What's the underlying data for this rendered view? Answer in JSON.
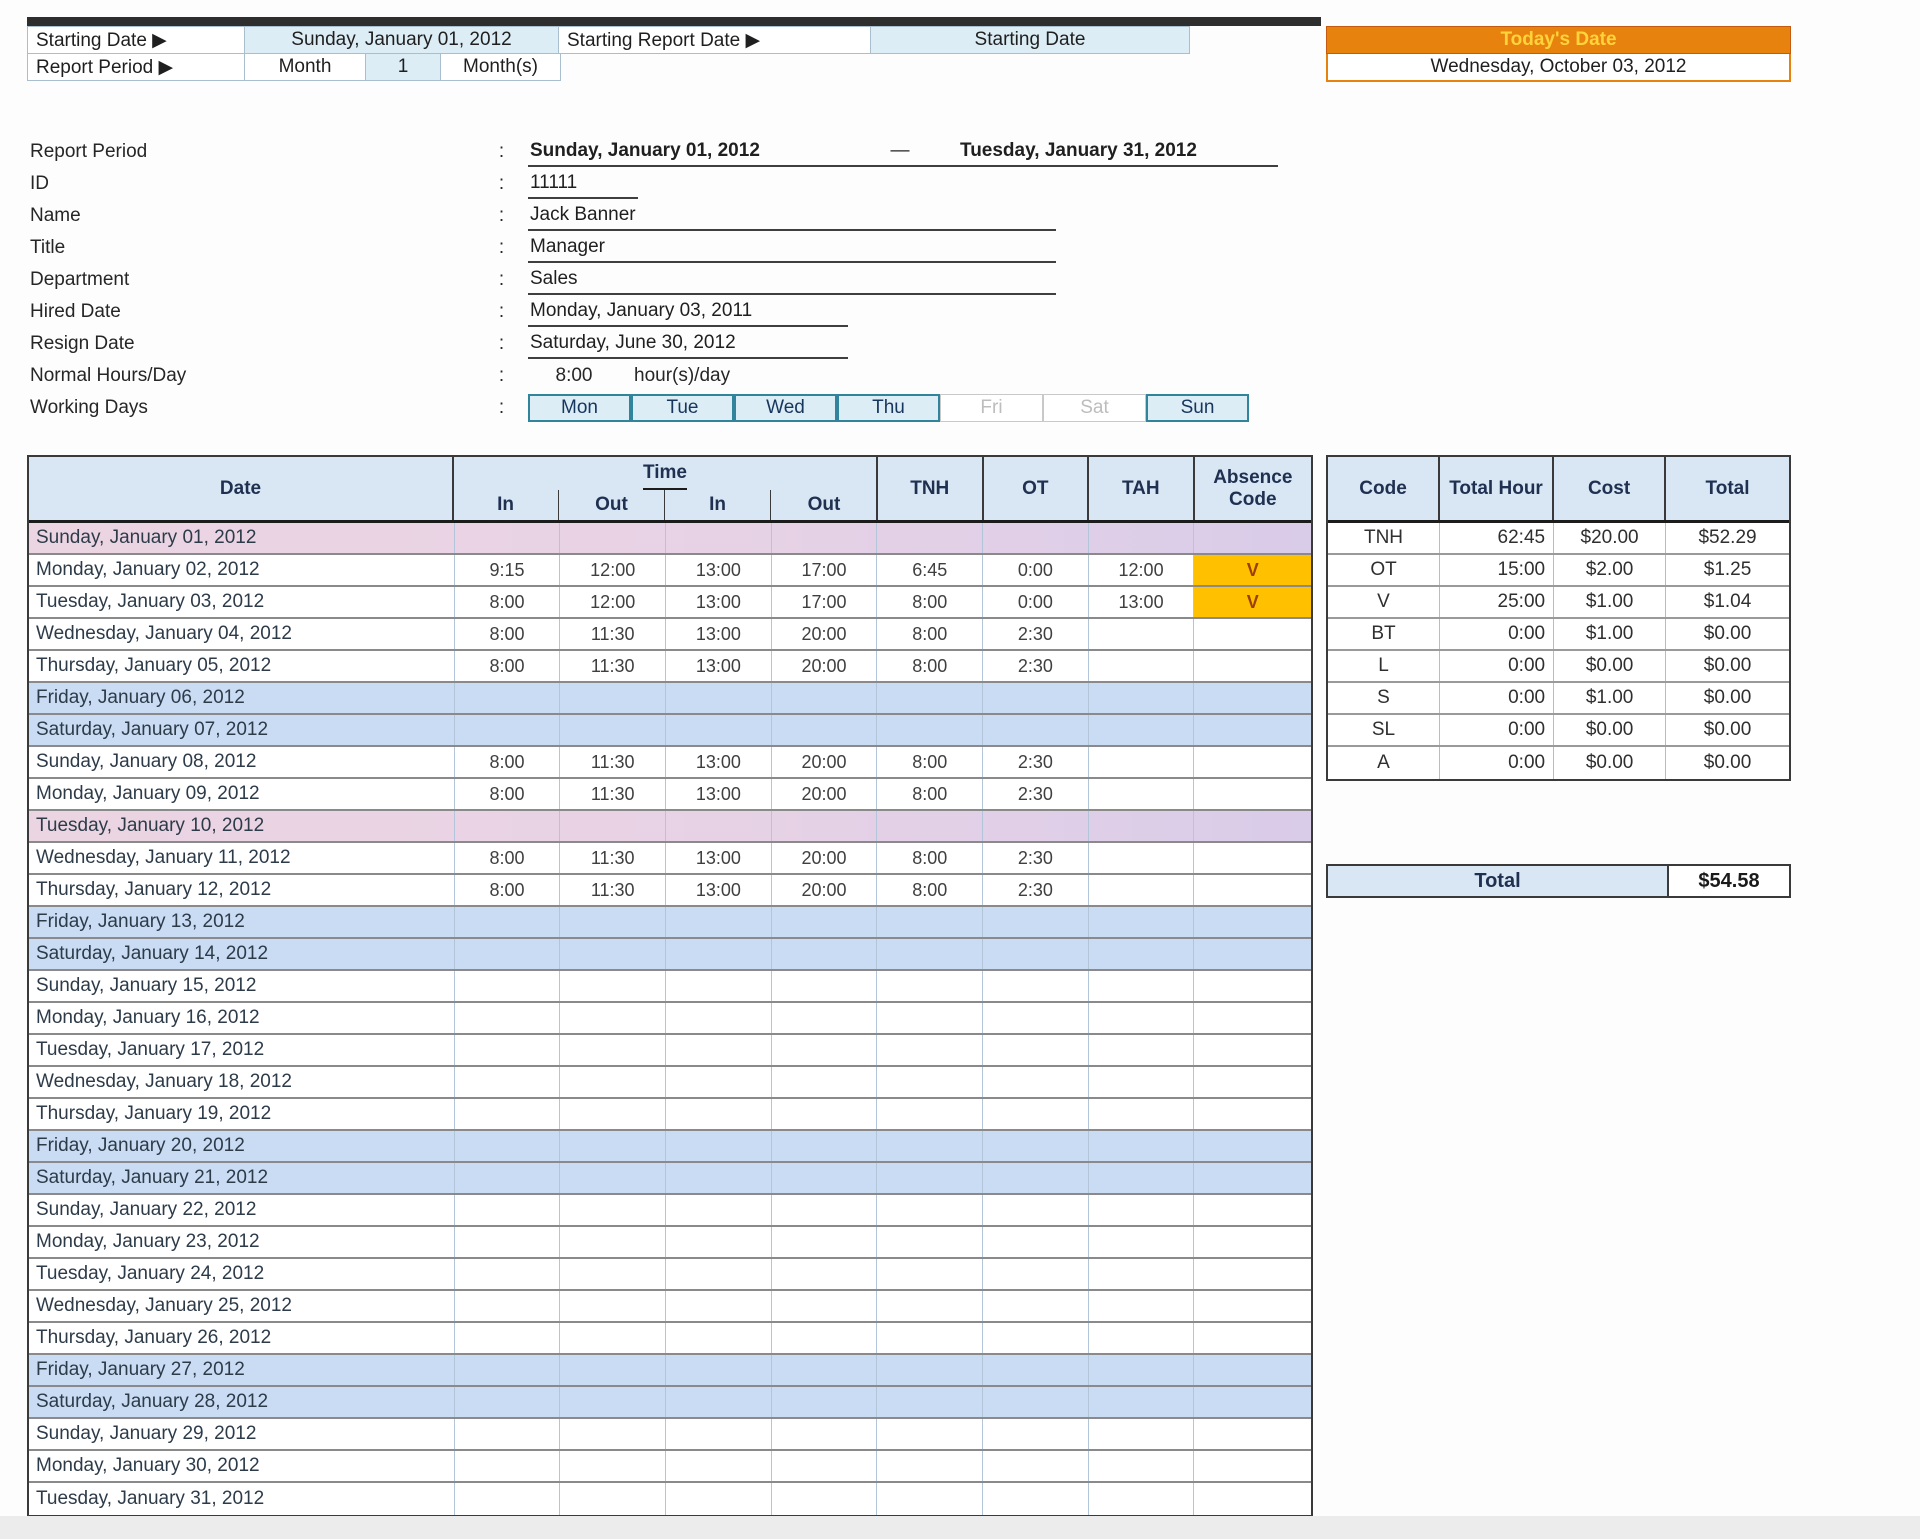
{
  "colors": {
    "accent_orange": "#e8820e",
    "accent_orange_text": "#ffd43b",
    "header_blue": "#d9e7f5",
    "input_cyan": "#dcedf5",
    "weekend_blue_row": "#c9dcf3",
    "holiday_pink_row": "#e9d3e4",
    "absence_yellow": "#ffc000",
    "absence_text": "#9c3e00",
    "day_active_border": "#31849b"
  },
  "top": {
    "starting_date_label": "Starting Date ▶",
    "starting_date_value": "Sunday, January 01, 2012",
    "starting_report_date_label": "Starting Report Date ▶",
    "starting_report_date_value": "Starting Date",
    "report_period_label": "Report Period ▶",
    "report_period_unit": "Month",
    "report_period_value": "1",
    "report_period_suffix": "Month(s)",
    "todays_date_label": "Today's Date",
    "todays_date_value": "Wednesday, October 03, 2012"
  },
  "profile": {
    "colon": ":",
    "report_period": {
      "label": "Report Period",
      "start": "Sunday, January 01, 2012",
      "separator": "—",
      "end": "Tuesday, January 31, 2012"
    },
    "id": {
      "label": "ID",
      "value": "11111"
    },
    "name": {
      "label": "Name",
      "value": "Jack Banner"
    },
    "title": {
      "label": "Title",
      "value": "Manager"
    },
    "department": {
      "label": "Department",
      "value": "Sales"
    },
    "hired_date": {
      "label": "Hired Date",
      "value": "Monday, January 03, 2011"
    },
    "resign_date": {
      "label": "Resign Date",
      "value": "Saturday, June 30, 2012"
    },
    "normal_hours": {
      "label": "Normal Hours/Day",
      "value": "8:00",
      "suffix": "hour(s)/day"
    },
    "working_days": {
      "label": "Working Days",
      "days": [
        {
          "label": "Mon",
          "active": true
        },
        {
          "label": "Tue",
          "active": true
        },
        {
          "label": "Wed",
          "active": true
        },
        {
          "label": "Thu",
          "active": true
        },
        {
          "label": "Fri",
          "active": false
        },
        {
          "label": "Sat",
          "active": false
        },
        {
          "label": "Sun",
          "active": true
        }
      ]
    }
  },
  "timesheet": {
    "headers": {
      "date": "Date",
      "time": "Time",
      "in1": "In",
      "out1": "Out",
      "in2": "In",
      "out2": "Out",
      "tnh": "TNH",
      "ot": "OT",
      "tah": "TAH",
      "absence": "Absence Code"
    },
    "rows": [
      {
        "date": "Sunday, January 01, 2012",
        "in1": "",
        "out1": "",
        "in2": "",
        "out2": "",
        "tnh": "",
        "ot": "",
        "tah": "",
        "absence": "",
        "highlight": "pink"
      },
      {
        "date": "Monday, January 02, 2012",
        "in1": "9:15",
        "out1": "12:00",
        "in2": "13:00",
        "out2": "17:00",
        "tnh": "6:45",
        "ot": "0:00",
        "tah": "12:00",
        "absence": "V",
        "highlight": ""
      },
      {
        "date": "Tuesday, January 03, 2012",
        "in1": "8:00",
        "out1": "12:00",
        "in2": "13:00",
        "out2": "17:00",
        "tnh": "8:00",
        "ot": "0:00",
        "tah": "13:00",
        "absence": "V",
        "highlight": ""
      },
      {
        "date": "Wednesday, January 04, 2012",
        "in1": "8:00",
        "out1": "11:30",
        "in2": "13:00",
        "out2": "20:00",
        "tnh": "8:00",
        "ot": "2:30",
        "tah": "",
        "absence": "",
        "highlight": ""
      },
      {
        "date": "Thursday, January 05, 2012",
        "in1": "8:00",
        "out1": "11:30",
        "in2": "13:00",
        "out2": "20:00",
        "tnh": "8:00",
        "ot": "2:30",
        "tah": "",
        "absence": "",
        "highlight": ""
      },
      {
        "date": "Friday, January 06, 2012",
        "in1": "",
        "out1": "",
        "in2": "",
        "out2": "",
        "tnh": "",
        "ot": "",
        "tah": "",
        "absence": "",
        "highlight": "blue"
      },
      {
        "date": "Saturday, January 07, 2012",
        "in1": "",
        "out1": "",
        "in2": "",
        "out2": "",
        "tnh": "",
        "ot": "",
        "tah": "",
        "absence": "",
        "highlight": "blue"
      },
      {
        "date": "Sunday, January 08, 2012",
        "in1": "8:00",
        "out1": "11:30",
        "in2": "13:00",
        "out2": "20:00",
        "tnh": "8:00",
        "ot": "2:30",
        "tah": "",
        "absence": "",
        "highlight": ""
      },
      {
        "date": "Monday, January 09, 2012",
        "in1": "8:00",
        "out1": "11:30",
        "in2": "13:00",
        "out2": "20:00",
        "tnh": "8:00",
        "ot": "2:30",
        "tah": "",
        "absence": "",
        "highlight": ""
      },
      {
        "date": "Tuesday, January 10, 2012",
        "in1": "",
        "out1": "",
        "in2": "",
        "out2": "",
        "tnh": "",
        "ot": "",
        "tah": "",
        "absence": "",
        "highlight": "pink"
      },
      {
        "date": "Wednesday, January 11, 2012",
        "in1": "8:00",
        "out1": "11:30",
        "in2": "13:00",
        "out2": "20:00",
        "tnh": "8:00",
        "ot": "2:30",
        "tah": "",
        "absence": "",
        "highlight": ""
      },
      {
        "date": "Thursday, January 12, 2012",
        "in1": "8:00",
        "out1": "11:30",
        "in2": "13:00",
        "out2": "20:00",
        "tnh": "8:00",
        "ot": "2:30",
        "tah": "",
        "absence": "",
        "highlight": ""
      },
      {
        "date": "Friday, January 13, 2012",
        "in1": "",
        "out1": "",
        "in2": "",
        "out2": "",
        "tnh": "",
        "ot": "",
        "tah": "",
        "absence": "",
        "highlight": "blue"
      },
      {
        "date": "Saturday, January 14, 2012",
        "in1": "",
        "out1": "",
        "in2": "",
        "out2": "",
        "tnh": "",
        "ot": "",
        "tah": "",
        "absence": "",
        "highlight": "blue"
      },
      {
        "date": "Sunday, January 15, 2012",
        "in1": "",
        "out1": "",
        "in2": "",
        "out2": "",
        "tnh": "",
        "ot": "",
        "tah": "",
        "absence": "",
        "highlight": ""
      },
      {
        "date": "Monday, January 16, 2012",
        "in1": "",
        "out1": "",
        "in2": "",
        "out2": "",
        "tnh": "",
        "ot": "",
        "tah": "",
        "absence": "",
        "highlight": ""
      },
      {
        "date": "Tuesday, January 17, 2012",
        "in1": "",
        "out1": "",
        "in2": "",
        "out2": "",
        "tnh": "",
        "ot": "",
        "tah": "",
        "absence": "",
        "highlight": ""
      },
      {
        "date": "Wednesday, January 18, 2012",
        "in1": "",
        "out1": "",
        "in2": "",
        "out2": "",
        "tnh": "",
        "ot": "",
        "tah": "",
        "absence": "",
        "highlight": ""
      },
      {
        "date": "Thursday, January 19, 2012",
        "in1": "",
        "out1": "",
        "in2": "",
        "out2": "",
        "tnh": "",
        "ot": "",
        "tah": "",
        "absence": "",
        "highlight": ""
      },
      {
        "date": "Friday, January 20, 2012",
        "in1": "",
        "out1": "",
        "in2": "",
        "out2": "",
        "tnh": "",
        "ot": "",
        "tah": "",
        "absence": "",
        "highlight": "blue"
      },
      {
        "date": "Saturday, January 21, 2012",
        "in1": "",
        "out1": "",
        "in2": "",
        "out2": "",
        "tnh": "",
        "ot": "",
        "tah": "",
        "absence": "",
        "highlight": "blue"
      },
      {
        "date": "Sunday, January 22, 2012",
        "in1": "",
        "out1": "",
        "in2": "",
        "out2": "",
        "tnh": "",
        "ot": "",
        "tah": "",
        "absence": "",
        "highlight": ""
      },
      {
        "date": "Monday, January 23, 2012",
        "in1": "",
        "out1": "",
        "in2": "",
        "out2": "",
        "tnh": "",
        "ot": "",
        "tah": "",
        "absence": "",
        "highlight": ""
      },
      {
        "date": "Tuesday, January 24, 2012",
        "in1": "",
        "out1": "",
        "in2": "",
        "out2": "",
        "tnh": "",
        "ot": "",
        "tah": "",
        "absence": "",
        "highlight": ""
      },
      {
        "date": "Wednesday, January 25, 2012",
        "in1": "",
        "out1": "",
        "in2": "",
        "out2": "",
        "tnh": "",
        "ot": "",
        "tah": "",
        "absence": "",
        "highlight": ""
      },
      {
        "date": "Thursday, January 26, 2012",
        "in1": "",
        "out1": "",
        "in2": "",
        "out2": "",
        "tnh": "",
        "ot": "",
        "tah": "",
        "absence": "",
        "highlight": ""
      },
      {
        "date": "Friday, January 27, 2012",
        "in1": "",
        "out1": "",
        "in2": "",
        "out2": "",
        "tnh": "",
        "ot": "",
        "tah": "",
        "absence": "",
        "highlight": "blue"
      },
      {
        "date": "Saturday, January 28, 2012",
        "in1": "",
        "out1": "",
        "in2": "",
        "out2": "",
        "tnh": "",
        "ot": "",
        "tah": "",
        "absence": "",
        "highlight": "blue"
      },
      {
        "date": "Sunday, January 29, 2012",
        "in1": "",
        "out1": "",
        "in2": "",
        "out2": "",
        "tnh": "",
        "ot": "",
        "tah": "",
        "absence": "",
        "highlight": ""
      },
      {
        "date": "Monday, January 30, 2012",
        "in1": "",
        "out1": "",
        "in2": "",
        "out2": "",
        "tnh": "",
        "ot": "",
        "tah": "",
        "absence": "",
        "highlight": ""
      },
      {
        "date": "Tuesday, January 31, 2012",
        "in1": "",
        "out1": "",
        "in2": "",
        "out2": "",
        "tnh": "",
        "ot": "",
        "tah": "",
        "absence": "",
        "highlight": ""
      }
    ]
  },
  "summary": {
    "headers": {
      "code": "Code",
      "total_hour": "Total Hour",
      "cost": "Cost",
      "total": "Total"
    },
    "rows": [
      {
        "code": "TNH",
        "total_hour": "62:45",
        "cost": "$20.00",
        "total": "$52.29"
      },
      {
        "code": "OT",
        "total_hour": "15:00",
        "cost": "$2.00",
        "total": "$1.25"
      },
      {
        "code": "V",
        "total_hour": "25:00",
        "cost": "$1.00",
        "total": "$1.04"
      },
      {
        "code": "BT",
        "total_hour": "0:00",
        "cost": "$1.00",
        "total": "$0.00"
      },
      {
        "code": "L",
        "total_hour": "0:00",
        "cost": "$0.00",
        "total": "$0.00"
      },
      {
        "code": "S",
        "total_hour": "0:00",
        "cost": "$1.00",
        "total": "$0.00"
      },
      {
        "code": "SL",
        "total_hour": "0:00",
        "cost": "$0.00",
        "total": "$0.00"
      },
      {
        "code": "A",
        "total_hour": "0:00",
        "cost": "$0.00",
        "total": "$0.00"
      }
    ],
    "total_label": "Total",
    "total_value": "$54.58"
  }
}
